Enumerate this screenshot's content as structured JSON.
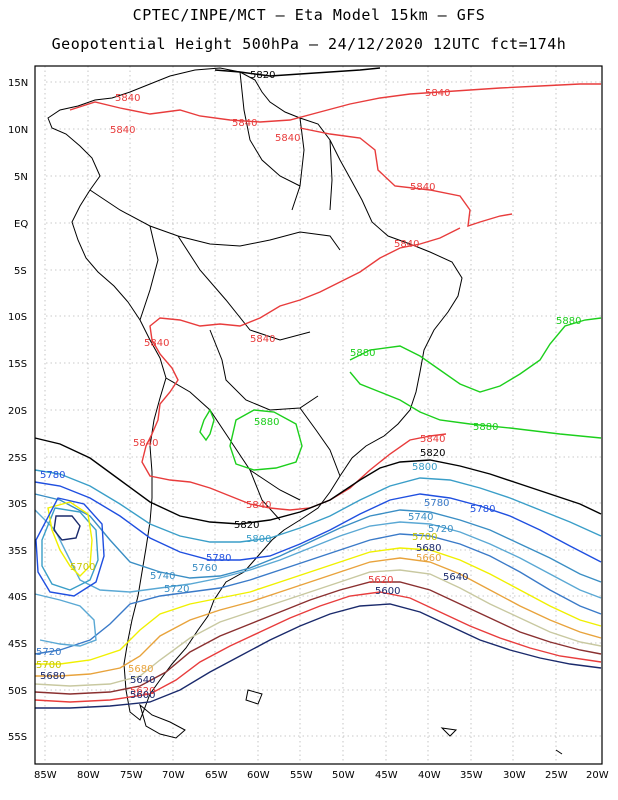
{
  "title": {
    "line1": "CPTEC/INPE/MCT –  Eta Model 15km – GFS",
    "line2": "Geopotential Height 500hPa – 24/12/2020 12UTC fct=174h"
  },
  "axes": {
    "lat_labels": [
      "15N",
      "10N",
      "5N",
      "EQ",
      "5S",
      "10S",
      "15S",
      "20S",
      "25S",
      "30S",
      "35S",
      "40S",
      "45S",
      "50S",
      "55S"
    ],
    "lon_labels": [
      "85W",
      "80W",
      "75W",
      "70W",
      "65W",
      "60W",
      "55W",
      "50W",
      "45W",
      "40W",
      "35W",
      "30W",
      "25W",
      "20W"
    ]
  },
  "contour_labels": {
    "c5840": "5840",
    "c5820": "5820",
    "c5800": "5800",
    "c5780": "5780",
    "c5760": "5760",
    "c5740": "5740",
    "c5720": "5720",
    "c5700": "5700",
    "c5680": "5680",
    "c5660": "5660",
    "c5640": "5640",
    "c5620": "5620",
    "c5600": "5600",
    "c5880": "5880"
  },
  "colors": {
    "c5880": "#1ccf1c",
    "c5840": "#e83c3c",
    "c5820": "#000000",
    "c5800": "#3a9ec8",
    "c5780": "#1f4fe0",
    "c5760": "#3a8ec4",
    "c5740": "#5aa8d4",
    "c5720": "#3a7ac8",
    "c5700": "#f0f000",
    "c5680": "#e8a33c",
    "c5660": "#c8c8a0",
    "c5640": "#8a3030",
    "c5620": "#e83c3c",
    "c5600": "#1a2a6c"
  }
}
